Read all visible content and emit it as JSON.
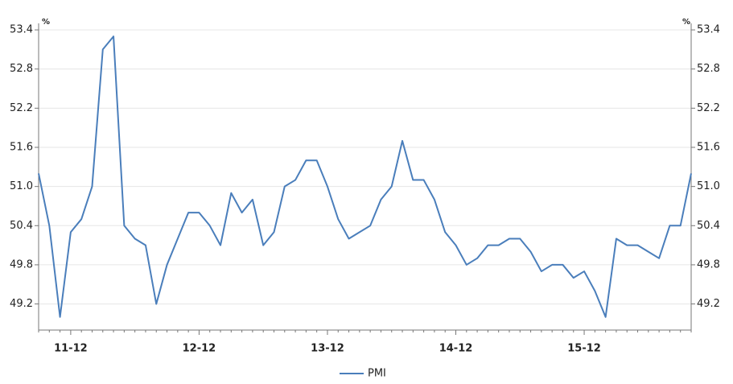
{
  "chart_data": {
    "type": "line",
    "y_unit": "%",
    "categories": [
      null,
      null,
      null,
      "11-12",
      null,
      null,
      null,
      null,
      null,
      null,
      null,
      null,
      null,
      null,
      null,
      "12-12",
      null,
      null,
      null,
      null,
      null,
      null,
      null,
      null,
      null,
      null,
      null,
      "13-12",
      null,
      null,
      null,
      null,
      null,
      null,
      null,
      null,
      null,
      null,
      null,
      "14-12",
      null,
      null,
      null,
      null,
      null,
      null,
      null,
      null,
      null,
      null,
      null,
      "15-12",
      null,
      null,
      null,
      null,
      null,
      null,
      null,
      null,
      null,
      null
    ],
    "series": [
      {
        "name": "PMI",
        "color": "#4a7ebb",
        "values": [
          51.2,
          50.4,
          49.0,
          50.3,
          50.5,
          51.0,
          53.1,
          53.3,
          50.4,
          50.2,
          50.1,
          49.2,
          49.8,
          50.2,
          50.6,
          50.6,
          50.4,
          50.1,
          50.9,
          50.6,
          50.8,
          50.1,
          50.3,
          51.0,
          51.1,
          51.4,
          51.4,
          51.0,
          50.5,
          50.2,
          50.3,
          50.4,
          50.8,
          51.0,
          51.7,
          51.1,
          51.1,
          50.8,
          50.3,
          50.1,
          49.8,
          49.9,
          50.1,
          50.1,
          50.2,
          50.2,
          50.0,
          49.7,
          49.8,
          49.8,
          49.6,
          49.7,
          49.4,
          49.0,
          50.2,
          50.1,
          50.1,
          50.0,
          49.9,
          50.4,
          50.4,
          51.2
        ]
      }
    ],
    "ylim": [
      48.8,
      53.5
    ],
    "yticks": [
      49.2,
      49.8,
      50.4,
      {
        "value": 51,
        "label": "51.0"
      },
      51.6,
      52.2,
      52.8,
      53.4
    ],
    "grid": true,
    "legend": "bottom"
  }
}
